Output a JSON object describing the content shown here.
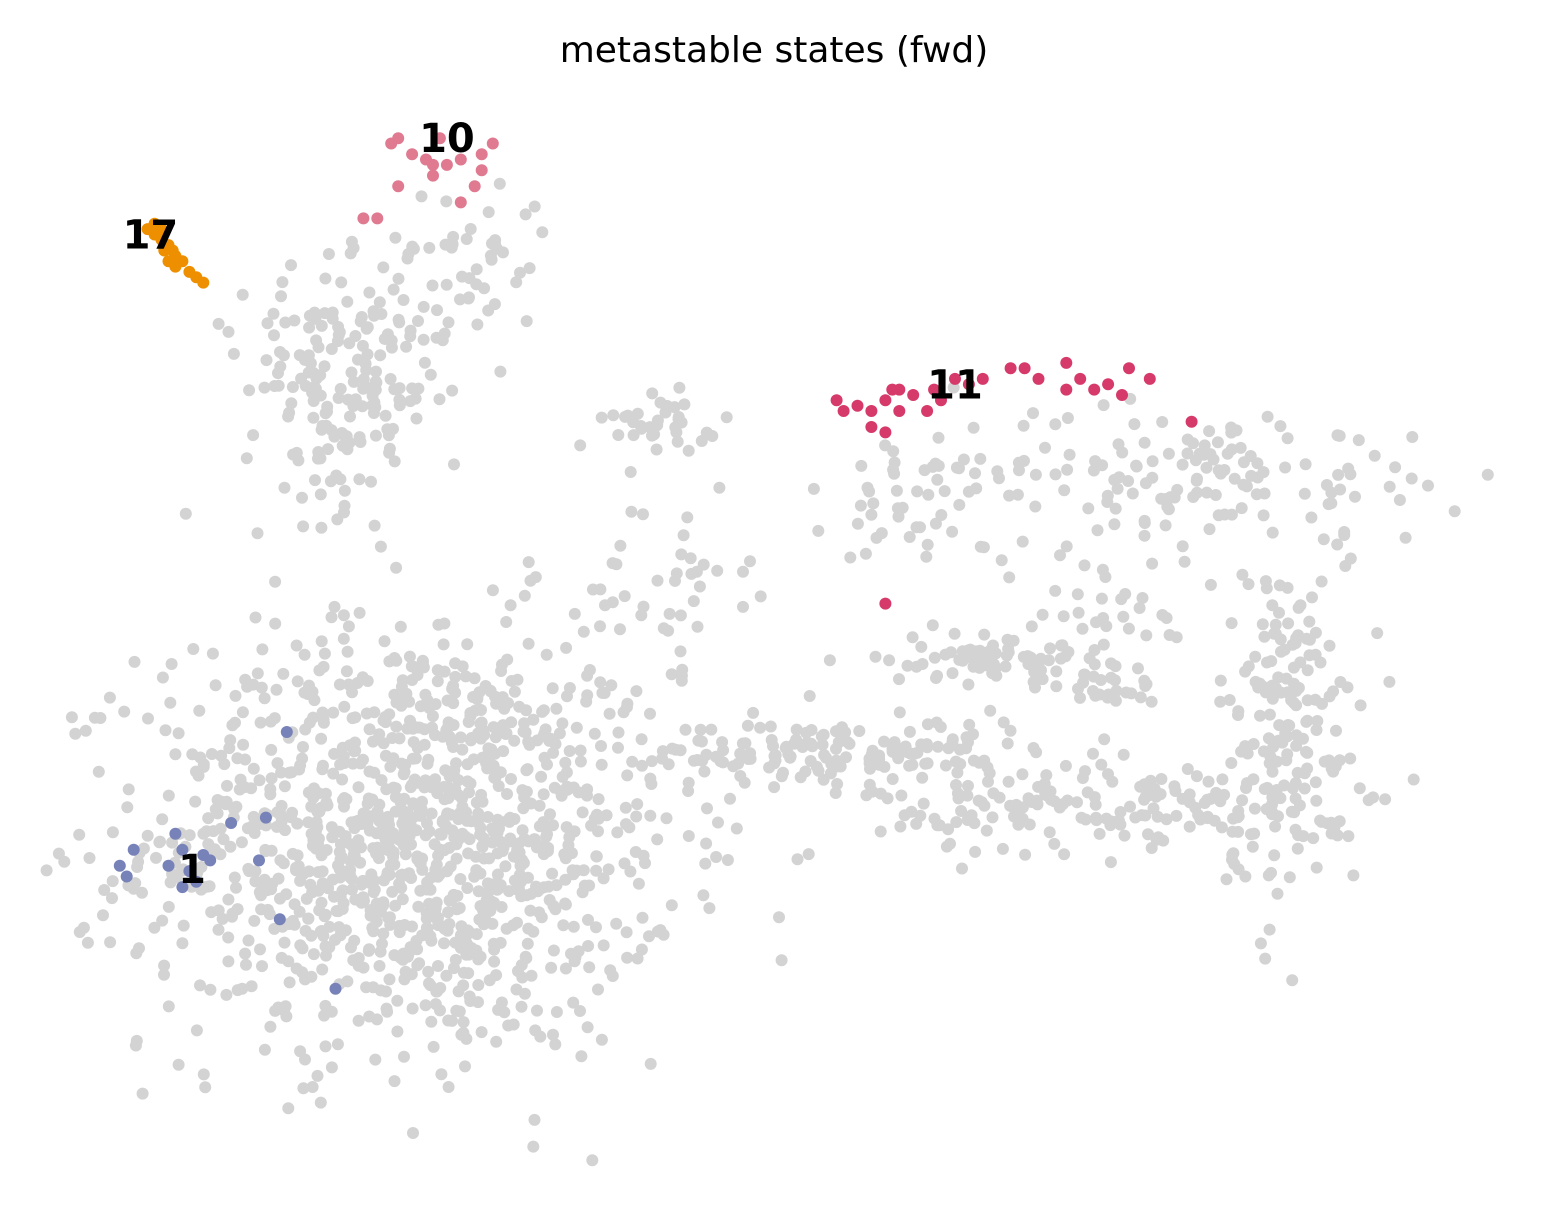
{
  "chart_data": {
    "type": "scatter",
    "title": "metastable states (fwd)",
    "xlabel": "",
    "ylabel": "",
    "grid": false,
    "axes_visible": false,
    "xlim": [
      0,
      100
    ],
    "ylim": [
      0,
      100
    ],
    "background_color": "#d3d3d3",
    "background_clusters": [
      {
        "cx": 24,
        "cy": 30,
        "sx": 9.5,
        "sy": 10,
        "n": 1250
      },
      {
        "cx": 19,
        "cy": 72,
        "sx": 3.5,
        "sy": 5.5,
        "n": 160
      },
      {
        "cx": 28,
        "cy": 84,
        "sx": 3,
        "sy": 4,
        "n": 45
      },
      {
        "cx": 21,
        "cy": 78,
        "sx": 4.5,
        "sy": 1.5,
        "n": 30
      },
      {
        "cx": 42,
        "cy": 69,
        "sx": 2,
        "sy": 1.2,
        "n": 35
      },
      {
        "cx": 55,
        "cy": 38,
        "sx": 7,
        "sy": 1.6,
        "n": 150
      },
      {
        "cx": 66,
        "cy": 47,
        "sx": 4,
        "sy": 1.2,
        "n": 80
      },
      {
        "cx": 74,
        "cy": 44,
        "sx": 1.8,
        "sy": 0.8,
        "n": 22
      },
      {
        "cx": 73,
        "cy": 33,
        "sx": 8,
        "sy": 2.2,
        "n": 170
      },
      {
        "cx": 87,
        "cy": 40,
        "sx": 2.6,
        "sy": 8,
        "n": 170
      },
      {
        "cx": 80,
        "cy": 64,
        "sx": 10,
        "sy": 3,
        "n": 150
      },
      {
        "cx": 60,
        "cy": 62,
        "sx": 2.2,
        "sy": 3.5,
        "n": 35
      },
      {
        "cx": 42,
        "cy": 54,
        "sx": 3,
        "sy": 4,
        "n": 40
      },
      {
        "cx": 74,
        "cy": 52,
        "sx": 6,
        "sy": 3.5,
        "n": 40
      }
    ],
    "series": [
      {
        "name": "1",
        "color": "#7782b8",
        "points": [
          [
            3,
            27.5
          ],
          [
            3.5,
            26.5
          ],
          [
            6.5,
            27.5
          ],
          [
            7.5,
            25.5
          ],
          [
            8,
            27
          ],
          [
            8.5,
            26
          ],
          [
            9.5,
            28
          ],
          [
            7.5,
            29
          ],
          [
            9,
            28.5
          ],
          [
            11,
            31.5
          ],
          [
            13.5,
            32
          ],
          [
            13,
            28
          ],
          [
            15,
            40
          ],
          [
            14.5,
            22.5
          ],
          [
            18.5,
            16
          ],
          [
            7,
            30.5
          ],
          [
            4,
            29
          ]
        ]
      },
      {
        "name": "10",
        "color": "#e07a90",
        "points": [
          [
            22.5,
            95
          ],
          [
            23,
            95.5
          ],
          [
            24,
            94
          ],
          [
            25,
            93.5
          ],
          [
            26,
            95.5
          ],
          [
            25.5,
            92
          ],
          [
            23,
            91
          ],
          [
            25.5,
            93
          ],
          [
            26.5,
            93
          ],
          [
            27.5,
            93.5
          ],
          [
            29,
            94
          ],
          [
            29.8,
            95
          ],
          [
            29,
            92.5
          ],
          [
            28.5,
            91
          ],
          [
            27.5,
            89.5
          ],
          [
            21.5,
            88
          ],
          [
            20.5,
            88
          ]
        ]
      },
      {
        "name": "11",
        "color": "#d63a6a",
        "points": [
          [
            54.5,
            71
          ],
          [
            55,
            70
          ],
          [
            56,
            70.5
          ],
          [
            57,
            70
          ],
          [
            58,
            71
          ],
          [
            59,
            72
          ],
          [
            60,
            71.5
          ],
          [
            61,
            70
          ],
          [
            62,
            71
          ],
          [
            63,
            73
          ],
          [
            64,
            72.5
          ],
          [
            65,
            73
          ],
          [
            67,
            74
          ],
          [
            68,
            74
          ],
          [
            69,
            73
          ],
          [
            71,
            74.5
          ],
          [
            72,
            73
          ],
          [
            71,
            72
          ],
          [
            73,
            72
          ],
          [
            74,
            72.5
          ],
          [
            75,
            71.5
          ],
          [
            75.5,
            74
          ],
          [
            77,
            73
          ],
          [
            80,
            69
          ],
          [
            57,
            68.5
          ],
          [
            58,
            68
          ],
          [
            59,
            70
          ],
          [
            58.5,
            72
          ],
          [
            61.5,
            72
          ],
          [
            58,
            52
          ]
        ]
      },
      {
        "name": "17",
        "color": "#ee8f00",
        "points": [
          [
            5,
            87
          ],
          [
            5.5,
            86.5
          ],
          [
            6,
            86
          ],
          [
            6.5,
            85.5
          ],
          [
            7,
            84.5
          ],
          [
            7.5,
            84
          ],
          [
            8,
            83
          ],
          [
            8.5,
            82.5
          ],
          [
            9,
            82
          ],
          [
            5.5,
            87.5
          ],
          [
            6,
            87
          ],
          [
            6.2,
            85
          ],
          [
            6.5,
            84
          ],
          [
            7,
            83.5
          ],
          [
            5.8,
            86.8
          ],
          [
            6.8,
            85
          ]
        ]
      }
    ],
    "state_labels": [
      {
        "text": "10",
        "x": 26.5,
        "y": 95.5
      },
      {
        "text": "17",
        "x": 5.2,
        "y": 86.5
      },
      {
        "text": "11",
        "x": 63,
        "y": 72.5
      },
      {
        "text": "1",
        "x": 8.2,
        "y": 27.2
      }
    ]
  }
}
